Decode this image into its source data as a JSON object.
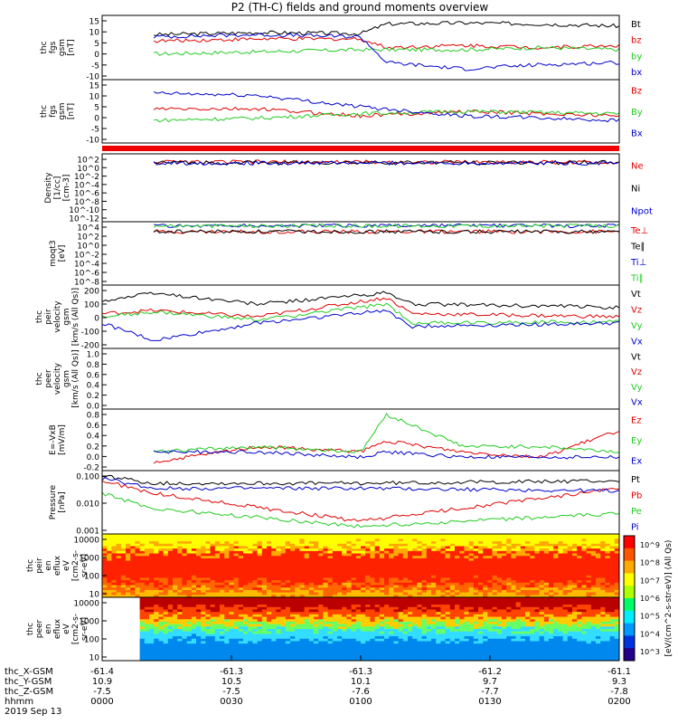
{
  "title": "P2 (TH-C) fields and ground moments overview",
  "colors": {
    "black": "#000000",
    "red": "#e00000",
    "green": "#22cc22",
    "blue": "#0000cc"
  },
  "x_axis": {
    "ticks": [
      "0000",
      "0030",
      "0100",
      "0130",
      "0200"
    ],
    "row_labels": [
      "thc_X-GSM",
      "thc_Y-GSM",
      "thc_Z-GSM",
      "hhmm",
      "2019 Sep 13"
    ],
    "rows": [
      [
        "-61.4",
        "-61.3",
        "-61.3",
        "-61.2",
        "-61.1"
      ],
      [
        "10.9",
        "10.5",
        "10.1",
        "9.7",
        "9.3"
      ],
      [
        "-7.5",
        "-7.5",
        "-7.6",
        "-7.7",
        "-7.8"
      ]
    ]
  },
  "colorbar_label": "[eV/(cm^2-s-str-eV)] (All Qs)",
  "colorbar_ticks": [
    "10^9",
    "10^8",
    "10^7",
    "10^6",
    "10^5",
    "10^4",
    "10^3"
  ],
  "chart_data": [
    {
      "type": "line",
      "ylabel": [
        "thc",
        "fgs",
        "gsm",
        "[nT]"
      ],
      "ylim": [
        -15,
        15
      ],
      "ytick_labels": [
        "15",
        "10",
        "5",
        "0",
        "-5",
        "-10"
      ],
      "series": [
        {
          "name": "Bt",
          "color": "black",
          "x": [
            0.1,
            0.3,
            0.5,
            0.55,
            0.7,
            0.85,
            1.0
          ],
          "values": [
            6,
            7,
            6.5,
            11,
            11.5,
            11,
            10
          ]
        },
        {
          "name": "bz",
          "color": "red",
          "x": [
            0.1,
            0.3,
            0.5,
            0.55,
            0.7,
            0.85,
            1.0
          ],
          "values": [
            3,
            4,
            4,
            0,
            1,
            0,
            1
          ]
        },
        {
          "name": "by",
          "color": "green",
          "x": [
            0.1,
            0.3,
            0.5,
            0.55,
            0.7,
            0.85,
            1.0
          ],
          "values": [
            -3,
            -2,
            -1,
            -1,
            -1,
            0,
            -1
          ]
        },
        {
          "name": "bx",
          "color": "blue",
          "x": [
            0.1,
            0.3,
            0.5,
            0.55,
            0.7,
            0.85,
            1.0
          ],
          "values": [
            5,
            6,
            5,
            -7,
            -10,
            -8,
            -7
          ]
        }
      ]
    },
    {
      "type": "line",
      "ylabel": [
        "thc",
        "fgs",
        "gsm",
        "[nT]"
      ],
      "ylim": [
        -13,
        15
      ],
      "ytick_labels": [
        "15",
        "10",
        "5",
        "0",
        "-5",
        "-10"
      ],
      "series": [
        {
          "name": "Bz",
          "color": "red",
          "x": [
            0.1,
            0.3,
            0.5,
            0.7,
            1.0
          ],
          "values": [
            2,
            2,
            -1,
            1,
            -1
          ]
        },
        {
          "name": "By",
          "color": "green",
          "x": [
            0.1,
            0.3,
            0.5,
            0.7,
            1.0
          ],
          "values": [
            -3,
            -2,
            0,
            1,
            0
          ]
        },
        {
          "name": "Bx",
          "color": "blue",
          "x": [
            0.1,
            0.3,
            0.5,
            0.7,
            1.0
          ],
          "values": [
            9,
            8,
            3,
            -1,
            -3
          ]
        }
      ]
    },
    {
      "type": "line",
      "ylabel": [
        "Density",
        "[1/cc]",
        "[cm-3]"
      ],
      "ylim": [
        -12,
        2
      ],
      "log": true,
      "ytick_labels": [
        "10^2",
        "10^0",
        "10^-2",
        "10^-4",
        "10^-6",
        "10^-8",
        "10^-10",
        "10^-12"
      ],
      "series": [
        {
          "name": "Ne",
          "color": "red",
          "x": [
            0.1,
            1.0
          ],
          "values": [
            0.3,
            0.3
          ]
        },
        {
          "name": "Ni",
          "color": "black",
          "x": [
            0.1,
            1.0
          ],
          "values": [
            0.2,
            0.2
          ]
        },
        {
          "name": "Npot",
          "color": "blue",
          "x": [
            0.1,
            1.0
          ],
          "values": [
            0.1,
            0.1
          ]
        }
      ]
    },
    {
      "type": "line",
      "ylabel": [
        "moqt3",
        "[eV]"
      ],
      "ylim": [
        -10,
        4
      ],
      "log": true,
      "ytick_labels": [
        "10^4",
        "10^2",
        "10^0",
        "10^-2",
        "10^-4",
        "10^-6",
        "10^-8"
      ],
      "series": [
        {
          "name": "Te⊥",
          "color": "red",
          "x": [
            0.1,
            1.0
          ],
          "values": [
            1.8,
            1.8
          ]
        },
        {
          "name": "Te∥",
          "color": "black",
          "x": [
            0.1,
            1.0
          ],
          "values": [
            1.8,
            1.8
          ]
        },
        {
          "name": "Ti⊥",
          "color": "blue",
          "x": [
            0.1,
            1.0
          ],
          "values": [
            3.1,
            3.1
          ]
        },
        {
          "name": "Ti∥",
          "color": "green",
          "x": [
            0.1,
            1.0
          ],
          "values": [
            3.1,
            3.1
          ]
        }
      ]
    },
    {
      "type": "line",
      "ylabel": [
        "thc",
        "peir",
        "velocity",
        "gsm",
        "[km/s (All Qs)]"
      ],
      "ylim": [
        -200,
        200
      ],
      "ytick_labels": [
        "200",
        "100",
        "0",
        "-100",
        "-200"
      ],
      "series": [
        {
          "name": "Vt",
          "color": "black",
          "x": [
            0,
            0.1,
            0.3,
            0.55,
            0.6,
            1.0
          ],
          "values": [
            100,
            150,
            80,
            150,
            80,
            60
          ]
        },
        {
          "name": "Vz",
          "color": "red",
          "x": [
            0,
            0.1,
            0.3,
            0.55,
            0.6,
            1.0
          ],
          "values": [
            20,
            40,
            0,
            120,
            20,
            0
          ]
        },
        {
          "name": "Vy",
          "color": "green",
          "x": [
            0,
            0.1,
            0.3,
            0.55,
            0.6,
            1.0
          ],
          "values": [
            0,
            30,
            -20,
            80,
            -40,
            -30
          ]
        },
        {
          "name": "Vx",
          "color": "blue",
          "x": [
            0,
            0.1,
            0.3,
            0.55,
            0.6,
            1.0
          ],
          "values": [
            -40,
            -150,
            -40,
            40,
            -60,
            -40
          ]
        }
      ]
    },
    {
      "type": "line",
      "ylabel": [
        "thc",
        "peer",
        "velocity",
        "gsm",
        "[km/s (All Qs)]"
      ],
      "ylim": [
        0,
        1
      ],
      "ytick_labels": [
        "1.0",
        "0.8",
        "0.6",
        "0.4",
        "0.2",
        "0.0"
      ],
      "series": [
        {
          "name": "Vt",
          "color": "black"
        },
        {
          "name": "Vz",
          "color": "red"
        },
        {
          "name": "Vy",
          "color": "green"
        },
        {
          "name": "Vx",
          "color": "blue"
        }
      ]
    },
    {
      "type": "line",
      "ylabel": [
        "E=-VxB",
        "[mV/m]"
      ],
      "ylim": [
        -0.35,
        0.8
      ],
      "ytick_labels": [
        "0.8",
        "0.6",
        "0.4",
        "0.2",
        "0.0",
        "-0.2"
      ],
      "series": [
        {
          "name": "Ez",
          "color": "red",
          "x": [
            0.1,
            0.3,
            0.5,
            0.55,
            0.7,
            0.85,
            1.0
          ],
          "values": [
            -0.2,
            0.1,
            0.0,
            0.2,
            0.0,
            -0.1,
            0.4
          ]
        },
        {
          "name": "Ey",
          "color": "green",
          "x": [
            0.1,
            0.3,
            0.5,
            0.55,
            0.7,
            0.85,
            1.0
          ],
          "values": [
            0.0,
            0.1,
            0.0,
            0.7,
            0.1,
            0.1,
            0.0
          ]
        },
        {
          "name": "Ex",
          "color": "blue",
          "x": [
            0.1,
            0.3,
            0.5,
            0.55,
            0.7,
            0.85,
            1.0
          ],
          "values": [
            0.0,
            0.0,
            -0.1,
            0.0,
            -0.1,
            -0.1,
            -0.1
          ]
        }
      ]
    },
    {
      "type": "line",
      "ylabel": [
        "Pressure",
        "[nPa]"
      ],
      "ylim": [
        -3,
        -0.5
      ],
      "log": true,
      "ytick_labels": [
        "0.100",
        "0.010",
        "0.001"
      ],
      "series": [
        {
          "name": "Pt",
          "color": "black",
          "x": [
            0,
            0.1,
            0.5,
            1.0
          ],
          "values": [
            -0.7,
            -1.0,
            -1.0,
            -0.9
          ]
        },
        {
          "name": "Pb",
          "color": "red",
          "x": [
            0,
            0.1,
            0.5,
            1.0
          ],
          "values": [
            -0.9,
            -1.4,
            -2.5,
            -1.2
          ]
        },
        {
          "name": "Pe",
          "color": "green",
          "x": [
            0,
            0.1,
            0.5,
            1.0
          ],
          "values": [
            -1.4,
            -2.0,
            -2.7,
            -2.2
          ]
        },
        {
          "name": "Pi",
          "color": "blue",
          "x": [
            0,
            0.1,
            0.5,
            1.0
          ],
          "values": [
            -0.8,
            -1.2,
            -1.2,
            -1.3
          ]
        }
      ]
    },
    {
      "type": "heatmap",
      "ylabel": [
        "thc",
        "peir",
        "en",
        "eflux",
        "eV",
        "[cm2-s-",
        "sr-eV]"
      ],
      "log": true,
      "ylim": [
        10,
        10000
      ],
      "ytick_labels": [
        "10000",
        "1000",
        "100",
        "10"
      ]
    },
    {
      "type": "heatmap",
      "ylabel": [
        "thc",
        "peer",
        "en",
        "eflux",
        "eV",
        "[cm2-s-",
        "sr-eV]"
      ],
      "log": true,
      "ylim": [
        10,
        10000
      ],
      "ytick_labels": [
        "10000",
        "1000",
        "100",
        "10"
      ]
    }
  ]
}
